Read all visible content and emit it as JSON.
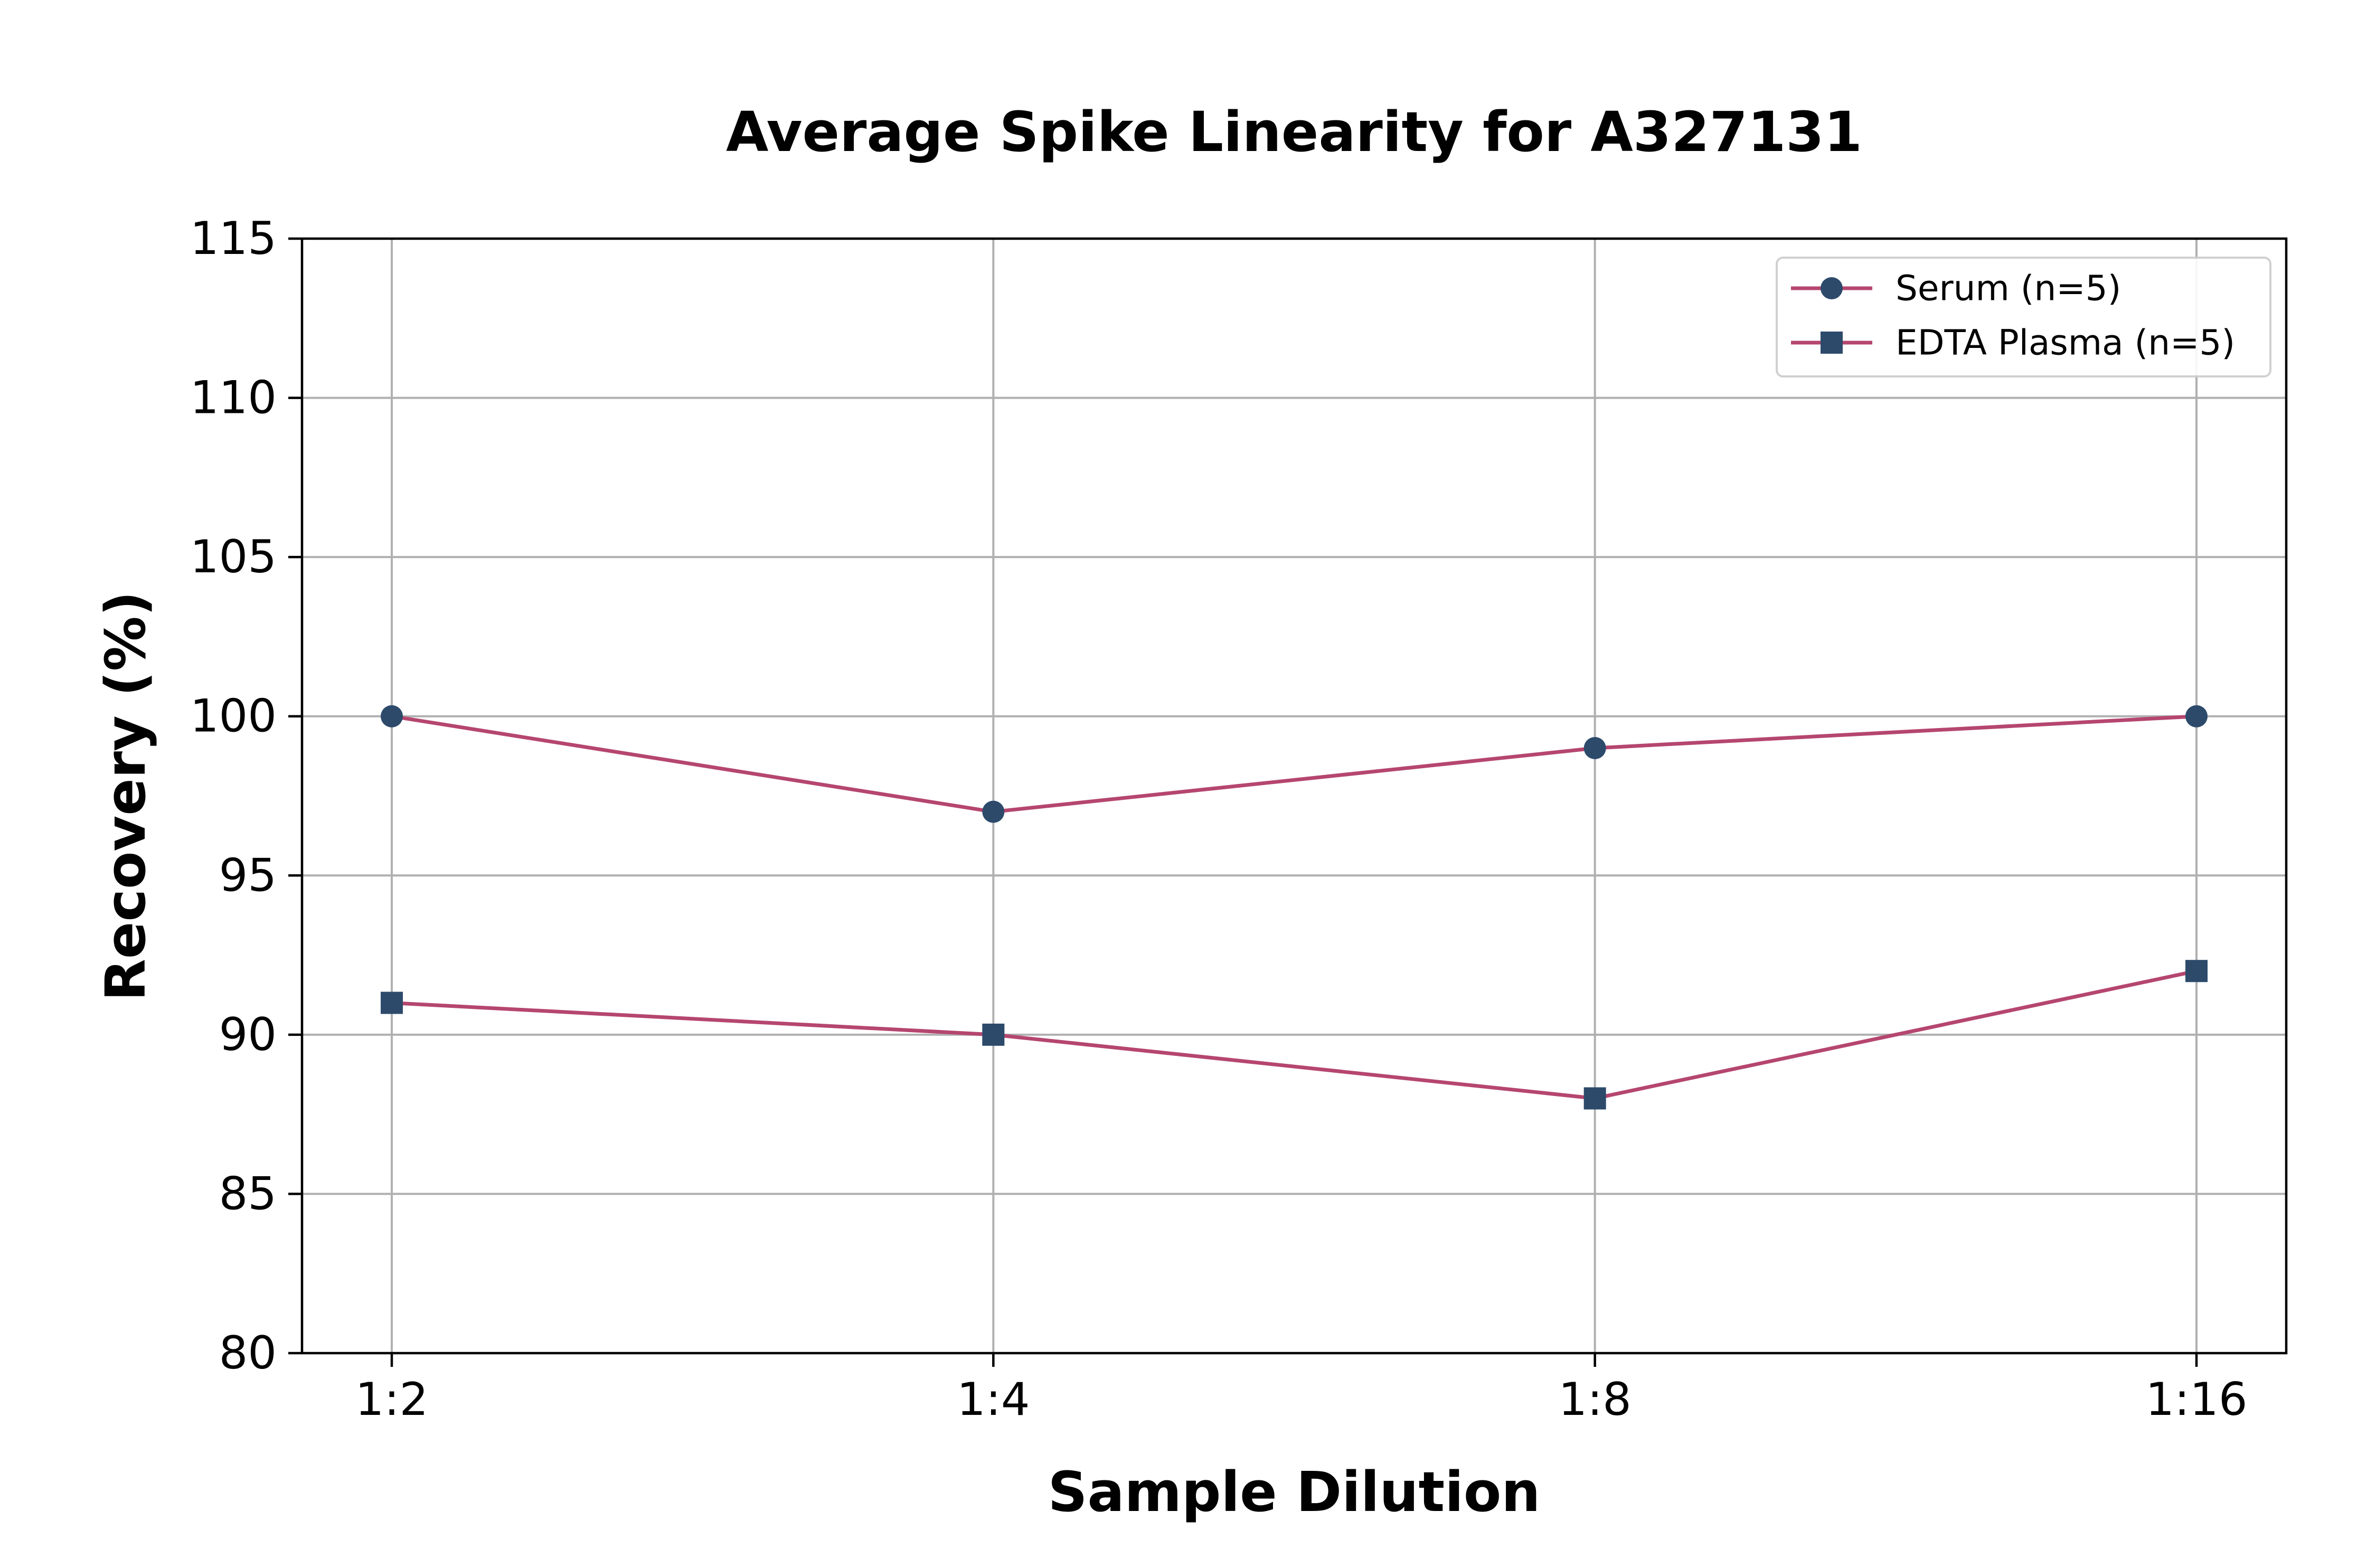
{
  "chart_data": {
    "type": "line",
    "title": "Average Spike Linearity for A327131",
    "xlabel": "Sample Dilution",
    "ylabel": "Recovery (%)",
    "categories": [
      "1:2",
      "1:4",
      "1:8",
      "1:16"
    ],
    "ylim": [
      80,
      115
    ],
    "yticks": [
      80,
      85,
      90,
      95,
      100,
      105,
      110,
      115
    ],
    "grid": true,
    "legend_position": "top-right",
    "line_color": "#b5466f",
    "marker_color": "#2d4a6b",
    "series": [
      {
        "name": "Serum (n=5)",
        "marker": "circle",
        "values": [
          100,
          97,
          99,
          100
        ]
      },
      {
        "name": "EDTA Plasma (n=5)",
        "marker": "square",
        "values": [
          91,
          90,
          88,
          92
        ]
      }
    ]
  }
}
